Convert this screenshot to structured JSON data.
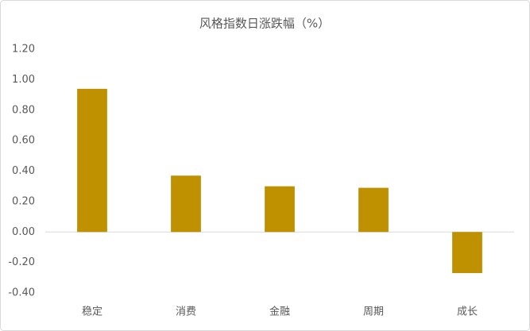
{
  "chart_data": {
    "type": "bar",
    "title": "风格指数日涨跌幅（%）",
    "categories": [
      "稳定",
      "消费",
      "金融",
      "周期",
      "成长"
    ],
    "values": [
      0.94,
      0.37,
      0.3,
      0.29,
      -0.27
    ],
    "color": "#bf9000",
    "ylim": [
      -0.4,
      1.2
    ],
    "yticks": [
      {
        "value": -0.4,
        "label": "-0.40"
      },
      {
        "value": -0.2,
        "label": "-0.20"
      },
      {
        "value": 0,
        "label": "0.00"
      },
      {
        "value": 0.2,
        "label": "0.20"
      },
      {
        "value": 0.4,
        "label": "0.40"
      },
      {
        "value": 0.6,
        "label": "0.60"
      },
      {
        "value": 0.8,
        "label": "0.80"
      },
      {
        "value": 1,
        "label": "1.00"
      },
      {
        "value": 1.2,
        "label": "1.20"
      }
    ],
    "grid": false
  }
}
